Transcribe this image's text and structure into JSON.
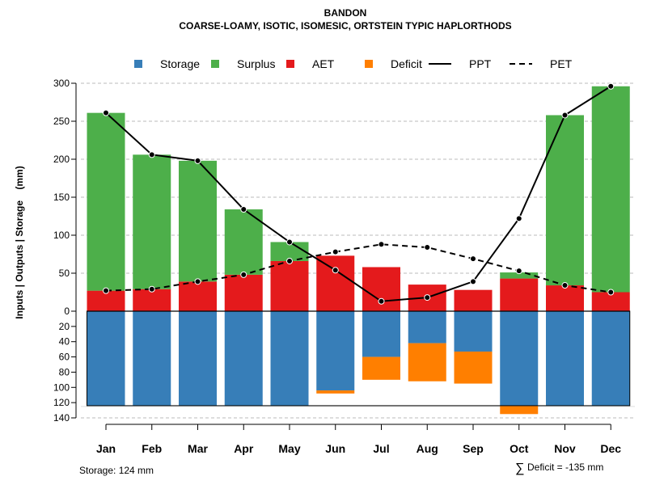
{
  "chart_data": {
    "type": "bar",
    "title": "BANDON",
    "subtitle": "COARSE-LOAMY, ISOTIC, ISOMESIC, ORTSTEIN TYPIC HAPLORTHODS",
    "ylabel": "Inputs | Outputs | Storage    (mm)",
    "ylim_top": [
      0,
      300
    ],
    "ylim_bottom": [
      0,
      140
    ],
    "yticks_top": [
      0,
      50,
      100,
      150,
      200,
      250,
      300
    ],
    "ytick_top_labels": [
      "0",
      "50",
      "100",
      "150",
      "200",
      "250",
      "300"
    ],
    "yticks_bottom": [
      20,
      40,
      60,
      80,
      100,
      120,
      140
    ],
    "ytick_bottom_labels": [
      "20",
      "40",
      "60",
      "80",
      "100",
      "120",
      "140"
    ],
    "categories": [
      "Jan",
      "Feb",
      "Mar",
      "Apr",
      "May",
      "Jun",
      "Jul",
      "Aug",
      "Sep",
      "Oct",
      "Nov",
      "Dec"
    ],
    "colors": {
      "storage": "#377EB8",
      "surplus": "#4DAF4A",
      "aet": "#E41A1C",
      "deficit": "#FF7F00",
      "line": "#000000",
      "grid": "#bbbbbb"
    },
    "legend": [
      {
        "key": "storage",
        "label": "Storage",
        "kind": "box"
      },
      {
        "key": "surplus",
        "label": "Surplus",
        "kind": "box"
      },
      {
        "key": "aet",
        "label": "AET",
        "kind": "box"
      },
      {
        "key": "deficit",
        "label": "Deficit",
        "kind": "box"
      },
      {
        "key": "ppt",
        "label": "PPT",
        "kind": "solid"
      },
      {
        "key": "pet",
        "label": "PET",
        "kind": "dashed"
      }
    ],
    "series": [
      {
        "name": "AET",
        "key": "aet",
        "values": [
          27,
          29,
          39,
          48,
          66,
          73,
          58,
          35,
          28,
          43,
          34,
          25
        ]
      },
      {
        "name": "Surplus",
        "key": "surplus",
        "values": [
          234,
          177,
          159,
          86,
          25,
          0,
          0,
          0,
          0,
          8,
          224,
          271
        ]
      },
      {
        "name": "Storage",
        "key": "storage",
        "values": [
          124,
          124,
          124,
          124,
          124,
          104,
          60,
          42,
          53,
          124,
          124,
          124
        ]
      },
      {
        "name": "Deficit",
        "key": "deficit",
        "values": [
          0,
          0,
          0,
          0,
          0,
          4,
          30,
          50,
          42,
          11,
          0,
          0
        ]
      },
      {
        "name": "PPT",
        "key": "ppt",
        "values": [
          261,
          206,
          198,
          134,
          91,
          54,
          13,
          18,
          39,
          122,
          258,
          296
        ]
      },
      {
        "name": "PET",
        "key": "pet",
        "values": [
          27,
          29,
          39,
          48,
          66,
          78,
          88,
          84,
          69,
          53,
          34,
          25
        ]
      }
    ],
    "storage_capacity": 124,
    "footer_left": "Storage: 124 mm",
    "footer_right_symbol": "∑",
    "footer_right": "Deficit = -135 mm"
  }
}
